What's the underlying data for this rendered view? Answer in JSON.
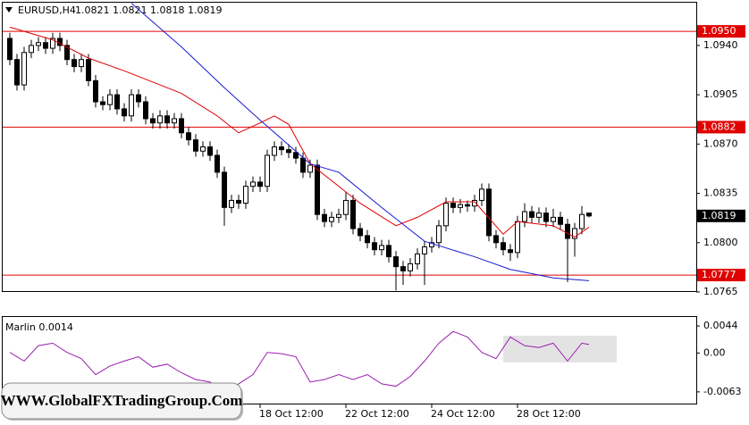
{
  "chart_data": [
    {
      "type": "candlestick",
      "title": "EURUSD,H4",
      "quote": "1.0821 1.0821 1.0818 1.0819",
      "xlim": [
        -1,
        96
      ],
      "ylim": [
        1.0765,
        1.0971
      ],
      "yticks": [
        {
          "value": 1.094,
          "label": "1.0940"
        },
        1.0905,
        {
          "value": 1.087,
          "label": "1.0870"
        },
        1.0835,
        {
          "value": 1.08,
          "label": "1.0800"
        },
        1.0765
      ],
      "levels": [
        {
          "value": 1.095,
          "label": "1.0950"
        },
        1.0882,
        1.0777
      ],
      "level_color": "#e00000",
      "last_price": 1.0819,
      "open": [
        1.0945,
        1.093,
        1.0912,
        1.0935,
        1.094,
        1.0942,
        1.0938,
        1.0945,
        1.094,
        1.093,
        1.0925,
        1.093,
        1.0915,
        1.09,
        1.0898,
        1.0905,
        1.0895,
        1.089,
        1.0905,
        1.09,
        1.0888,
        1.0885,
        1.089,
        1.0885,
        1.0888,
        1.0878,
        1.0873,
        1.0865,
        1.0868,
        1.0862,
        1.085,
        1.0825,
        1.083,
        1.0828,
        1.084,
        1.0843,
        1.084,
        1.0862,
        1.0868,
        1.0866,
        1.0864,
        1.086,
        1.085,
        1.0855,
        1.082,
        1.0815,
        1.0818,
        1.082,
        1.083,
        1.081,
        1.0805,
        1.08,
        1.0795,
        1.0798,
        1.079,
        1.0783,
        1.078,
        1.0785,
        1.0792,
        1.0797,
        1.08,
        1.0812,
        1.0828,
        1.0825,
        1.0827,
        1.0826,
        1.083,
        1.0838,
        1.0805,
        1.08,
        1.0795,
        1.0793,
        1.0815,
        1.0822,
        1.0818,
        1.0821,
        1.0815,
        1.0818,
        1.0813,
        1.0803,
        1.081,
        1.0821
      ],
      "high": [
        1.0949,
        1.0934,
        1.0939,
        1.0944,
        1.0946,
        1.0946,
        1.0949,
        1.0949,
        1.0944,
        1.0934,
        1.0934,
        1.0934,
        1.0919,
        1.0904,
        1.0909,
        1.0909,
        1.0899,
        1.0909,
        1.0909,
        1.0904,
        1.0892,
        1.0894,
        1.0894,
        1.0892,
        1.0892,
        1.0882,
        1.0877,
        1.0872,
        1.0872,
        1.0866,
        1.0854,
        1.0834,
        1.0834,
        1.0844,
        1.0847,
        1.0847,
        1.0866,
        1.0872,
        1.0872,
        1.087,
        1.0868,
        1.0864,
        1.0859,
        1.0859,
        1.0824,
        1.0822,
        1.0824,
        1.0836,
        1.0834,
        1.0814,
        1.0809,
        1.0804,
        1.0802,
        1.0802,
        1.0794,
        1.0787,
        1.0789,
        1.0796,
        1.0801,
        1.0804,
        1.0816,
        1.0832,
        1.0832,
        1.0831,
        1.083,
        1.0834,
        1.0842,
        1.0842,
        1.0809,
        1.0804,
        1.0799,
        1.0819,
        1.0828,
        1.0826,
        1.0825,
        1.0825,
        1.0824,
        1.0822,
        1.0817,
        1.0814,
        1.0826,
        1.0821
      ],
      "low": [
        1.0926,
        1.0908,
        1.0908,
        1.0931,
        1.0936,
        1.0934,
        1.0934,
        1.0936,
        1.0926,
        1.0921,
        1.0921,
        1.0911,
        1.0896,
        1.0894,
        1.0894,
        1.0891,
        1.0886,
        1.0886,
        1.0896,
        1.0884,
        1.0881,
        1.0881,
        1.0881,
        1.0881,
        1.0874,
        1.0869,
        1.0861,
        1.0861,
        1.0858,
        1.0846,
        1.0812,
        1.0821,
        1.0824,
        1.0824,
        1.0836,
        1.0836,
        1.0836,
        1.0858,
        1.0862,
        1.086,
        1.0856,
        1.0846,
        1.0846,
        1.0816,
        1.0811,
        1.0811,
        1.0814,
        1.0816,
        1.0806,
        1.0801,
        1.0796,
        1.0791,
        1.0791,
        1.0786,
        1.0766,
        1.077,
        1.0776,
        1.0781,
        1.077,
        1.0793,
        1.0796,
        1.0808,
        1.0821,
        1.0821,
        1.0822,
        1.0822,
        1.0826,
        1.0801,
        1.0796,
        1.0791,
        1.0787,
        1.0789,
        1.0811,
        1.0814,
        1.0814,
        1.0811,
        1.0811,
        1.0809,
        1.0772,
        1.079,
        1.0806,
        1.0818
      ],
      "close": [
        1.093,
        1.0912,
        1.0935,
        1.094,
        1.0942,
        1.0938,
        1.0945,
        1.094,
        1.093,
        1.0925,
        1.093,
        1.0915,
        1.09,
        1.0898,
        1.0905,
        1.0895,
        1.089,
        1.0905,
        1.09,
        1.0888,
        1.0885,
        1.089,
        1.0885,
        1.0888,
        1.0878,
        1.0873,
        1.0865,
        1.0868,
        1.0862,
        1.085,
        1.0825,
        1.083,
        1.0828,
        1.084,
        1.0843,
        1.084,
        1.0862,
        1.0868,
        1.0866,
        1.0864,
        1.086,
        1.085,
        1.0855,
        1.082,
        1.0815,
        1.0818,
        1.082,
        1.083,
        1.081,
        1.0805,
        1.08,
        1.0795,
        1.0798,
        1.079,
        1.0783,
        1.078,
        1.0785,
        1.0792,
        1.0797,
        1.08,
        1.0812,
        1.0828,
        1.0825,
        1.0827,
        1.0826,
        1.083,
        1.0838,
        1.0805,
        1.08,
        1.0795,
        1.0793,
        1.0815,
        1.0822,
        1.0818,
        1.0821,
        1.0815,
        1.0818,
        1.0813,
        1.0803,
        1.081,
        1.082,
        1.0819
      ],
      "lines": [
        {
          "color": "#e00000",
          "x": [
            0,
            6,
            11,
            16,
            24,
            29,
            32,
            35,
            37,
            39,
            42,
            49,
            54,
            57,
            61,
            65,
            69,
            71,
            76,
            79,
            81
          ],
          "values": [
            1.0953,
            1.0944,
            1.0931,
            1.0922,
            1.0906,
            1.089,
            1.0878,
            1.0885,
            1.089,
            1.0884,
            1.0856,
            1.0828,
            1.0812,
            1.0818,
            1.0829,
            1.0829,
            1.0806,
            1.0815,
            1.0812,
            1.0804,
            1.0811
          ]
        },
        {
          "color": "#1a1ad0",
          "x": [
            17,
            24,
            30,
            35,
            42,
            46,
            52,
            58,
            65,
            70,
            76,
            81
          ],
          "values": [
            1.097,
            1.0939,
            1.091,
            1.0887,
            1.0856,
            1.085,
            1.0825,
            1.0801,
            1.079,
            1.0781,
            1.0775,
            1.0773
          ]
        }
      ]
    },
    {
      "type": "line",
      "title": "Marlin 0.0014",
      "xlim": [
        -1,
        96
      ],
      "ylim": [
        -0.0082,
        0.006
      ],
      "yticks": [
        0.0044,
        {
          "value": 0,
          "label": "0.00"
        },
        -0.0063
      ],
      "xticks": [
        {
          "value": 35,
          "label": "18 Oct 12:00"
        },
        {
          "value": 47,
          "label": "22 Oct 12:00"
        },
        {
          "value": 59,
          "label": "24 Oct 12:00"
        },
        {
          "value": 71,
          "label": "28 Oct 12:00"
        }
      ],
      "series": [
        {
          "color": "#9a1fb0",
          "x": [
            0,
            2,
            4,
            6,
            8,
            10,
            12,
            14,
            16,
            18,
            20,
            22,
            24,
            26,
            28,
            30,
            32,
            34,
            36,
            38,
            40,
            42,
            44,
            46,
            48,
            50,
            52,
            54,
            56,
            58,
            60,
            62,
            64,
            66,
            68,
            70,
            72,
            74,
            76,
            78,
            80,
            81
          ],
          "values": [
            0.0001,
            -0.0013,
            0.0012,
            0.0016,
            0.0001,
            -0.0009,
            -0.0035,
            -0.0021,
            -0.0013,
            -0.0006,
            -0.0023,
            -0.0018,
            -0.0032,
            -0.0043,
            -0.0047,
            -0.0065,
            -0.005,
            -0.0035,
            0.0001,
            -0.0001,
            -0.0006,
            -0.0047,
            -0.0043,
            -0.0035,
            -0.0043,
            -0.0035,
            -0.005,
            -0.0054,
            -0.0038,
            -0.0013,
            0.0016,
            0.0035,
            0.0026,
            0.0001,
            -0.0009,
            0.0026,
            0.0012,
            0.0009,
            0.0016,
            -0.0013,
            0.0016,
            0.0014
          ]
        }
      ]
    }
  ],
  "watermark": "WWW.GlobalFXTradingGroup.Com"
}
